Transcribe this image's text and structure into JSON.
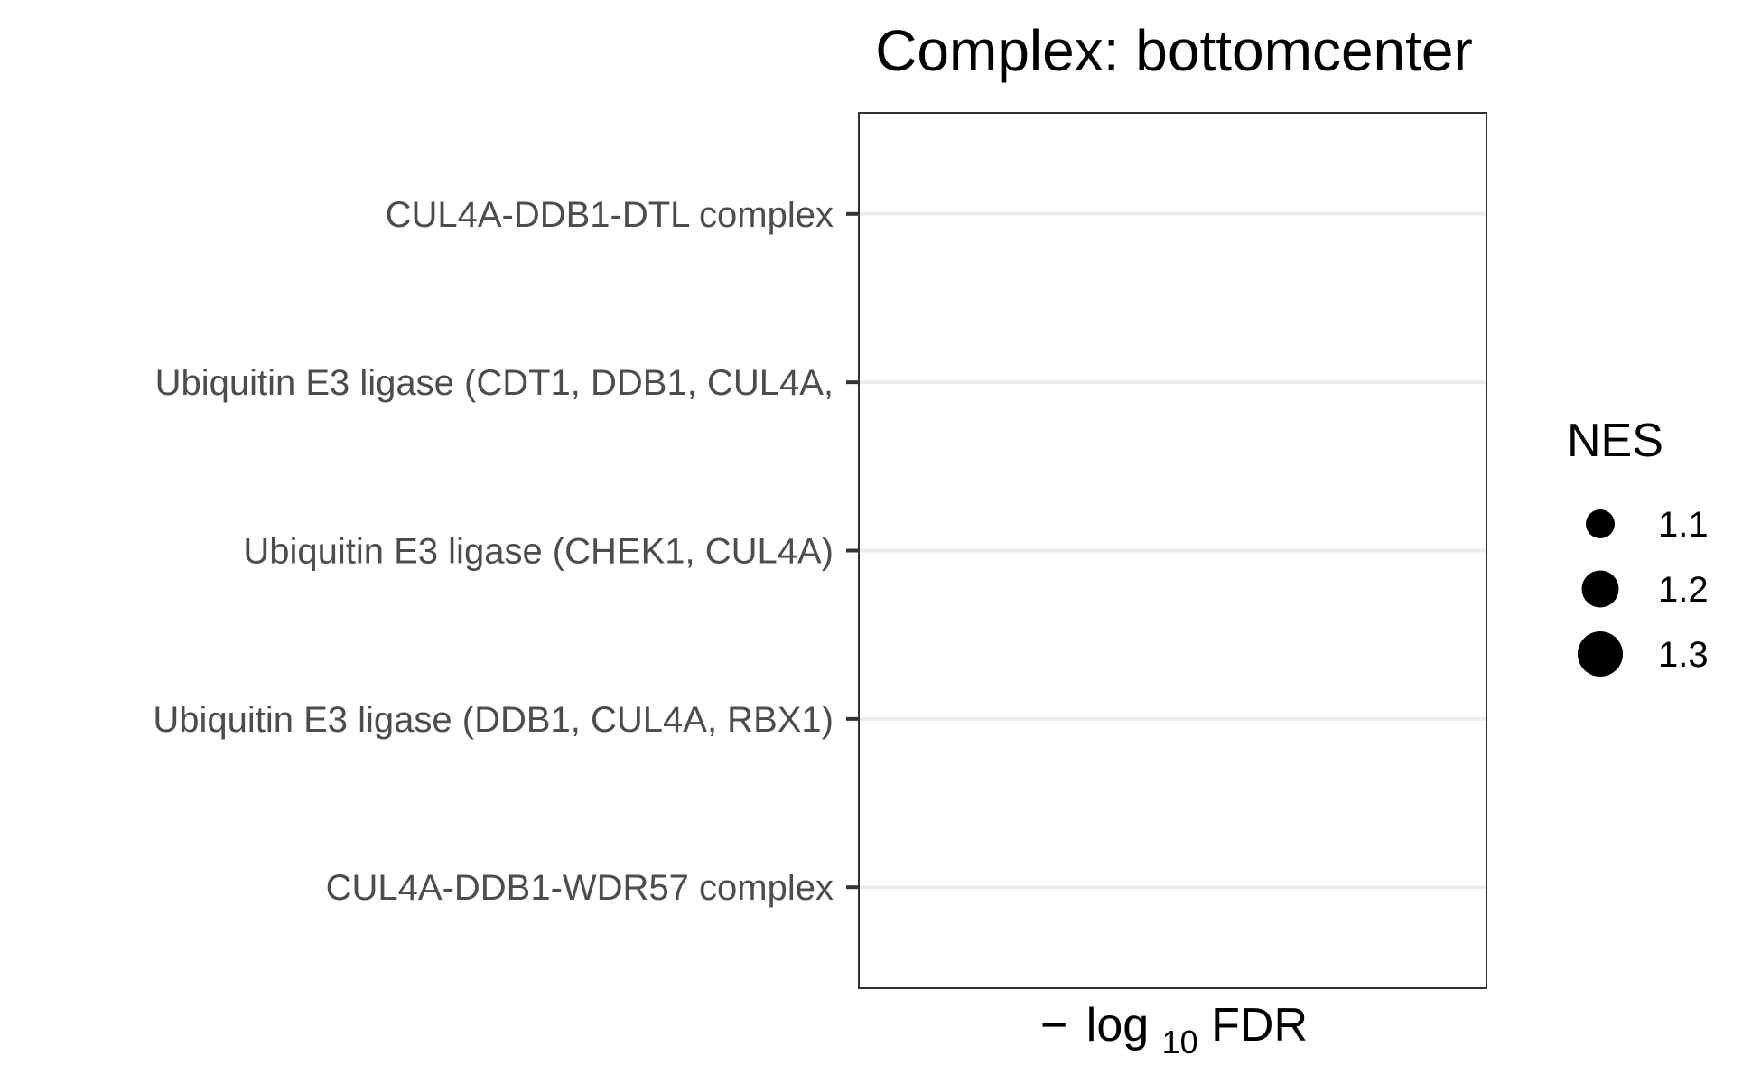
{
  "chart_data": {
    "type": "scatter",
    "title": "Complex: bottomcenter",
    "xlabel": {
      "minus": "−",
      "log": "log",
      "sub": "10",
      "tail": "FDR"
    },
    "ylabel": "",
    "categories": [
      "CUL4A-DDB1-DTL complex",
      "Ubiquitin E3 ligase (CDT1, DDB1, CUL4A, ",
      "Ubiquitin E3 ligase (CHEK1, CUL4A)",
      "Ubiquitin E3 ligase (DDB1, CUL4A, RBX1)",
      "CUL4A-DDB1-WDR57 complex"
    ],
    "series": [],
    "grid": true,
    "legend": {
      "title": "NES",
      "placement": "right",
      "items": [
        {
          "label": "1.1",
          "value": 1.1
        },
        {
          "label": "1.2",
          "value": 1.2
        },
        {
          "label": "1.3",
          "value": 1.3
        }
      ]
    },
    "colors": {
      "grid": "#ebebeb",
      "panel_border": "#333333",
      "tick_text": "#4d4d4d",
      "point": "#000000"
    }
  }
}
